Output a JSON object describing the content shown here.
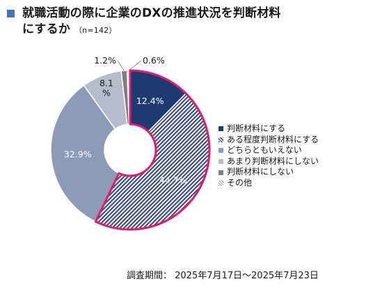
{
  "title": "就職活動の際に企業のDXの推進状況を判断材料にするか",
  "title_line1": "就職活動の際に企業のDXの推進状況を判断材料",
  "title_line2": "にするか",
  "subtitle": "（n=142）",
  "survey_period": "調査期間： 2025年7月17日～2025年7月23日",
  "colors": {
    "title_marker": "#4472c4",
    "highlight_outline": "#e6196b",
    "slice_1": "#1f3a73",
    "slice_2": "#3a4f7a",
    "slice_3": "#8c9bb8",
    "slice_4": "#b5bccb",
    "slice_5": "#7f7f7f",
    "slice_6": "#c6cbd7"
  },
  "chart_data": {
    "type": "donut",
    "title": "就職活動の際に企業のDXの推進状況を判断材料にするか",
    "n": 142,
    "legend_position": "right",
    "slices": [
      {
        "label": "判断材料にする",
        "value": 12.4,
        "display": "12.4%",
        "color": "#1f3a73",
        "pattern": "solid",
        "highlighted": true
      },
      {
        "label": "ある程度判断材料にする",
        "value": 44.7,
        "display": "44.7%",
        "color": "#3a4f7a",
        "pattern": "hatched",
        "highlighted": true
      },
      {
        "label": "どちらともいえない",
        "value": 32.9,
        "display": "32.9%",
        "color": "#8c9bb8",
        "pattern": "solid",
        "highlighted": false
      },
      {
        "label": "あまり判断材料にしない",
        "value": 8.1,
        "display": "8.1\n%",
        "color": "#b5bccb",
        "pattern": "solid",
        "highlighted": false
      },
      {
        "label": "判断材料にしない",
        "value": 1.2,
        "display": "1.2%",
        "color": "#7f7f7f",
        "pattern": "solid",
        "highlighted": false
      },
      {
        "label": "その他",
        "value": 0.6,
        "display": "0.6%",
        "color": "#c6cbd7",
        "pattern": "dotted",
        "highlighted": false
      }
    ]
  }
}
